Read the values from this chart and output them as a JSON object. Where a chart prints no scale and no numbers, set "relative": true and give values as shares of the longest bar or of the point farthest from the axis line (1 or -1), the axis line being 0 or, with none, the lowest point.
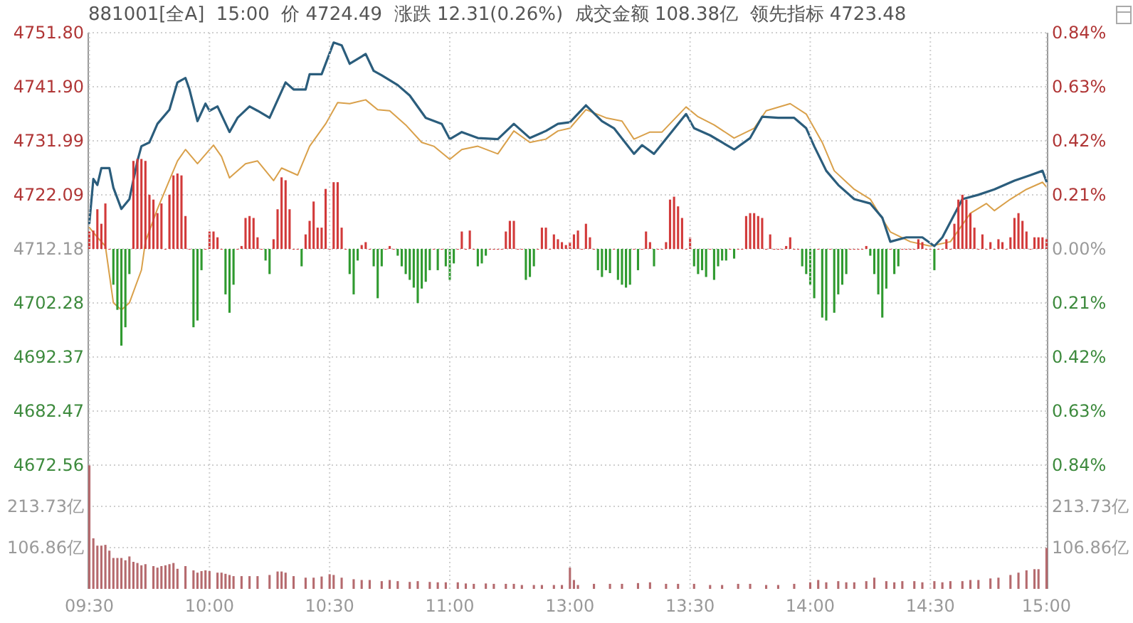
{
  "chart_data": [
    {
      "type": "line",
      "title": "881001[全A]  15:00  价 4724.49  涨跌 12.31(0.26%)  成交金额 108.38亿  领先指标 4723.48",
      "grid": "y",
      "categories": [
        null,
        null,
        null,
        null,
        null,
        null,
        null,
        null,
        null,
        null,
        null,
        null,
        null,
        null,
        null,
        null,
        null,
        null,
        null,
        null,
        null,
        null,
        null,
        null,
        null,
        null,
        null,
        null,
        null,
        null,
        null,
        null,
        null,
        null,
        null,
        null,
        null,
        null,
        null,
        null,
        null,
        null,
        null,
        null,
        null,
        null,
        null,
        null,
        null,
        null,
        null,
        null,
        null,
        null,
        null,
        null,
        null,
        null,
        null,
        null,
        null,
        null,
        null,
        null,
        null,
        null,
        null,
        null,
        null,
        null,
        null,
        null,
        null,
        null,
        null,
        null,
        null,
        null,
        null,
        null,
        null,
        null,
        null,
        null,
        null,
        null,
        null,
        null,
        null,
        null,
        null,
        null,
        null,
        null,
        null,
        null,
        null,
        null,
        null,
        null,
        null,
        null,
        null,
        null,
        null,
        null,
        null,
        null,
        null,
        null,
        null,
        null,
        null,
        null,
        null,
        null,
        null,
        null,
        null,
        null,
        null,
        null,
        null,
        null,
        null,
        null,
        null,
        null,
        null,
        null,
        null,
        null,
        null,
        null,
        null,
        null,
        null,
        null,
        null,
        null,
        null,
        null,
        null,
        null,
        null,
        null,
        null,
        null,
        null,
        null,
        null,
        null,
        null,
        null,
        null,
        null,
        null,
        null,
        null,
        null,
        null,
        null,
        null,
        null,
        null,
        null,
        null,
        null,
        null,
        null,
        null,
        null,
        null,
        null,
        null,
        null,
        null,
        null,
        null,
        null,
        null,
        null,
        null,
        null,
        null,
        null,
        null,
        null,
        null,
        null,
        null,
        null,
        null,
        null,
        null,
        null,
        null,
        null,
        null,
        null,
        null,
        null,
        null,
        null,
        null,
        null,
        null,
        null,
        null,
        null,
        null,
        null,
        null,
        null,
        null,
        null,
        null,
        null,
        null,
        null,
        null,
        null,
        null,
        null,
        null,
        null,
        null,
        null,
        null,
        null,
        null,
        null,
        null,
        null,
        null,
        null,
        null,
        null,
        null,
        null
      ],
      "ylim": [
        4672.56,
        4751.8
      ],
      "yticks": [
        {
          "value": 4672.56,
          "label": "4672.56"
        },
        {
          "value": 4682.47,
          "label": "4682.47"
        },
        {
          "value": 4692.37,
          "label": "4692.37"
        },
        {
          "value": 4702.28,
          "label": "4702.28"
        },
        {
          "value": 4712.18,
          "label": "4712.18"
        },
        {
          "value": 4722.09,
          "label": "4722.09"
        },
        {
          "value": 4731.99,
          "label": "4731.99"
        },
        {
          "value": 4741.9,
          "label": "4741.90"
        },
        {
          "value": 4751.8,
          "label": "4751.80"
        }
      ],
      "y2lim": [
        -0.84,
        0.84
      ],
      "y2ticks": [
        {
          "value": -0.84,
          "label": "0.84%"
        },
        {
          "value": -0.63,
          "label": "0.63%"
        },
        {
          "value": -0.42,
          "label": "0.42%"
        },
        {
          "value": -0.21,
          "label": "0.21%"
        },
        {
          "value": 0,
          "label": "0.00%"
        },
        {
          "value": 0.21,
          "label": "0.21%"
        },
        {
          "value": 0.42,
          "label": "0.42%"
        },
        {
          "value": 0.63,
          "label": "0.63%"
        },
        {
          "value": 0.84,
          "label": "0.84%"
        }
      ],
      "series": [
        {
          "color": "#d9a04a",
          "values": [
            4716.1,
            null,
            4714.3,
            null,
            4712.7,
            null,
            4702.3,
            null,
            4701.0,
            null,
            4702.3,
            null,
            null,
            4708.3,
            4713.5,
            null,
            null,
            4719.5,
            null,
            null,
            null,
            null,
            4728.3,
            null,
            4730.4,
            null,
            null,
            4727.8,
            null,
            null,
            null,
            4731.2,
            null,
            4729.1,
            null,
            4725.2,
            null,
            null,
            null,
            4727.8,
            null,
            null,
            4728.3,
            null,
            null,
            null,
            4724.7,
            null,
            4727.0,
            null,
            null,
            null,
            4725.7,
            null,
            null,
            4731.0,
            null,
            null,
            null,
            4735.1,
            null,
            null,
            4739.0,
            null,
            null,
            4738.8,
            null,
            null,
            null,
            4739.5,
            null,
            null,
            4737.7,
            null,
            null,
            4737.5,
            null,
            null,
            null,
            4734.9,
            null,
            null,
            null,
            4731.7,
            null,
            null,
            4731.0,
            null,
            null,
            null,
            4728.6,
            null,
            null,
            4730.4,
            null,
            null,
            null,
            4731.0,
            null,
            null,
            null,
            null,
            4729.6,
            null,
            null,
            null,
            4733.8,
            null,
            null,
            null,
            4731.7,
            null,
            null,
            null,
            4732.3,
            null,
            null,
            4733.8,
            null,
            null,
            4734.3,
            null,
            null,
            null,
            4737.7,
            null,
            null,
            null,
            null,
            4736.2,
            null,
            null,
            null,
            4735.6,
            null,
            null,
            4732.3,
            null,
            null,
            null,
            4733.6,
            null,
            null,
            4733.6,
            null,
            null,
            null,
            null,
            null,
            4738.2,
            null,
            null,
            4736.4,
            null,
            null,
            null,
            4734.9,
            null,
            null,
            null,
            null,
            4732.5,
            null,
            null,
            null,
            null,
            4734.3,
            null,
            null,
            4737.5,
            null,
            null,
            null,
            null,
            null,
            4738.8,
            null,
            null,
            null,
            4736.9,
            null,
            null,
            null,
            4731.7,
            null,
            null,
            4726.5,
            null,
            null,
            null,
            null,
            4723.1,
            null,
            null,
            null,
            4721.3,
            null,
            null,
            null,
            null,
            4715.3,
            null,
            null,
            null,
            null,
            4713.5,
            null,
            null,
            null,
            null,
            4712.7,
            null,
            null,
            null,
            null,
            4713.5,
            null,
            null,
            null,
            null,
            4718.7,
            null,
            null,
            null,
            4720.5,
            null,
            4719.2,
            null,
            null,
            null,
            4721.3,
            null,
            null,
            null,
            4723.1,
            null,
            null,
            null,
            4724.4,
            4723.5
          ]
        },
        {
          "color": "#2b5d7c",
          "values": [
            4716.9,
            4725.0,
            4723.9,
            4727.0,
            null,
            4727.0,
            4723.4,
            null,
            4719.5,
            null,
            4721.3,
            null,
            4728.3,
            4731.0,
            null,
            4731.7,
            null,
            4735.1,
            null,
            null,
            4737.7,
            null,
            4742.7,
            null,
            4743.5,
            4741.4,
            null,
            4735.6,
            null,
            4738.8,
            4737.5,
            null,
            4738.3,
            null,
            null,
            4733.6,
            null,
            4736.2,
            null,
            null,
            4738.3,
            null,
            4737.5,
            null,
            null,
            4736.2,
            null,
            null,
            null,
            4742.7,
            null,
            4741.4,
            null,
            null,
            4741.4,
            4744.2,
            null,
            null,
            4744.2,
            null,
            null,
            4750.0,
            null,
            4749.5,
            null,
            4746.1,
            null,
            null,
            null,
            4747.9,
            null,
            4744.8,
            null,
            4744.0,
            null,
            null,
            null,
            4742.2,
            null,
            null,
            4740.3,
            null,
            null,
            null,
            4736.2,
            null,
            null,
            null,
            4735.1,
            null,
            4732.3,
            null,
            null,
            4733.6,
            null,
            null,
            null,
            4732.5,
            null,
            null,
            null,
            null,
            4732.3,
            null,
            null,
            null,
            4735.1,
            null,
            null,
            null,
            4732.5,
            null,
            null,
            null,
            4733.8,
            null,
            null,
            4735.1,
            null,
            null,
            4735.4,
            null,
            null,
            null,
            4738.5,
            null,
            null,
            null,
            4735.6,
            null,
            null,
            4734.3,
            null,
            null,
            null,
            null,
            4729.6,
            null,
            4731.2,
            null,
            null,
            4729.6,
            null,
            null,
            null,
            null,
            null,
            null,
            null,
            4736.9,
            null,
            4734.3,
            null,
            null,
            null,
            4733.0,
            null,
            null,
            null,
            null,
            null,
            4730.4,
            null,
            null,
            null,
            4732.5,
            null,
            null,
            4736.4,
            null,
            null,
            null,
            4736.2,
            null,
            null,
            null,
            4736.2,
            null,
            null,
            4734.3,
            null,
            4731.0,
            null,
            null,
            4726.5,
            null,
            null,
            4723.9,
            null,
            null,
            null,
            4721.3,
            null,
            null,
            null,
            4720.5,
            null,
            null,
            4717.9,
            null,
            4713.5,
            null,
            null,
            null,
            4714.3,
            null,
            null,
            null,
            4714.3,
            null,
            null,
            4712.7,
            null,
            4714.3,
            null,
            null,
            null,
            null,
            4721.3,
            null,
            null,
            null,
            4722.1,
            null,
            null,
            null,
            4723.1,
            null,
            null,
            null,
            null,
            4724.7,
            null,
            null,
            null,
            4725.7,
            null,
            null,
            4726.5,
            4724.5
          ]
        }
      ]
    },
    {
      "type": "bar",
      "relative": true,
      "categories": [
        null,
        null,
        null,
        null,
        null,
        null,
        null,
        null,
        null,
        null,
        null,
        null,
        null,
        null,
        null,
        null,
        null,
        null,
        null,
        null,
        null,
        null,
        null,
        null,
        null,
        null,
        null,
        null,
        null,
        null,
        null,
        null,
        null,
        null,
        null,
        null,
        null,
        null,
        null,
        null,
        null,
        null,
        null,
        null,
        null,
        null,
        null,
        null,
        null,
        null,
        null,
        null,
        null,
        null,
        null,
        null,
        null,
        null,
        null,
        null,
        null,
        null,
        null,
        null,
        null,
        null,
        null,
        null,
        null,
        null,
        null,
        null,
        null,
        null,
        null,
        null,
        null,
        null,
        null,
        null,
        null,
        null,
        null,
        null,
        null,
        null,
        null,
        null,
        null,
        null,
        null,
        null,
        null,
        null,
        null,
        null,
        null,
        null,
        null,
        null,
        null,
        null,
        null,
        null,
        null,
        null,
        null,
        null,
        null,
        null,
        null,
        null,
        null,
        null,
        null,
        null,
        null,
        null,
        null,
        null,
        null,
        null,
        null,
        null,
        null,
        null,
        null,
        null,
        null,
        null,
        null,
        null,
        null,
        null,
        null,
        null,
        null,
        null,
        null,
        null,
        null,
        null,
        null,
        null,
        null,
        null,
        null,
        null,
        null,
        null,
        null,
        null,
        null,
        null,
        null,
        null,
        null,
        null,
        null,
        null,
        null,
        null,
        null,
        null,
        null,
        null,
        null,
        null,
        null,
        null,
        null,
        null,
        null,
        null,
        null,
        null,
        null,
        null,
        null,
        null,
        null,
        null,
        null,
        null,
        null,
        null,
        null,
        null,
        null,
        null,
        null,
        null,
        null,
        null,
        null,
        null,
        null,
        null,
        null,
        null,
        null,
        null,
        null,
        null,
        null,
        null,
        null,
        null,
        null,
        null,
        null,
        null,
        null,
        null,
        null,
        null,
        null,
        null,
        null,
        null,
        null,
        null,
        null,
        null,
        null,
        null,
        null,
        null,
        null,
        null,
        null,
        null,
        null,
        null,
        null,
        null,
        null,
        null,
        null,
        null
      ],
      "series": [
        {
          "values": [
            0.18,
            0.19,
            0.41,
            0.26,
            0.47,
            0,
            -0.37,
            -0.63,
            -1,
            -0.81,
            -0.26,
            0.91,
            0.93,
            0.93,
            0.91,
            0.56,
            0.51,
            0.37,
            0.47,
            0,
            0.56,
            0.76,
            0.78,
            0.76,
            0.34,
            0,
            -0.81,
            -0.74,
            -0.22,
            0,
            0.18,
            0.18,
            0.12,
            0,
            -0.47,
            -0.66,
            -0.37,
            0,
            0.03,
            0.32,
            0.34,
            0.32,
            0.12,
            0,
            -0.12,
            -0.26,
            0.1,
            0.41,
            0.74,
            0.71,
            0.41,
            0,
            0,
            -0.18,
            0.15,
            0.29,
            0.49,
            0.22,
            0.22,
            0.62,
            0,
            0.69,
            0.69,
            0.22,
            0,
            -0.26,
            -0.47,
            -0.12,
            0.04,
            0.07,
            0,
            -0.18,
            -0.51,
            -0.18,
            0,
            0.03,
            0,
            -0.07,
            -0.18,
            -0.26,
            -0.32,
            -0.4,
            -0.56,
            -0.41,
            -0.34,
            -0.22,
            0,
            -0.22,
            0,
            -0.18,
            -0.32,
            -0.15,
            0,
            0.18,
            0,
            0.19,
            0,
            -0.18,
            -0.15,
            -0.07,
            0,
            0,
            0,
            0,
            0.18,
            0.29,
            0.29,
            0,
            0,
            -0.32,
            -0.29,
            -0.18,
            0,
            0.22,
            0.22,
            0,
            0.15,
            0.1,
            0.07,
            0.04,
            0.07,
            0.15,
            0.19,
            0,
            0.26,
            0.12,
            0,
            -0.22,
            -0.29,
            -0.22,
            -0.25,
            0,
            -0.32,
            -0.37,
            -0.4,
            -0.37,
            0,
            -0.22,
            0,
            0.18,
            0.07,
            -0.18,
            0,
            0,
            0.07,
            0.51,
            0.54,
            0.44,
            0.32,
            0,
            0.12,
            -0.18,
            -0.26,
            -0.22,
            -0.29,
            0,
            -0.32,
            -0.18,
            -0.12,
            -0.12,
            0,
            -0.1,
            0,
            0,
            0.34,
            0.37,
            0.37,
            0.34,
            0.32,
            0,
            0.15,
            0,
            0,
            0,
            0.03,
            0.12,
            0,
            0,
            -0.18,
            -0.26,
            -0.37,
            -0.51,
            0,
            -0.71,
            -0.74,
            0,
            -0.66,
            -0.47,
            -0.37,
            -0.26,
            0,
            0,
            0,
            0,
            0.03,
            -0.07,
            -0.26,
            -0.47,
            -0.71,
            -0.41,
            0,
            -0.26,
            -0.18,
            0,
            0,
            0,
            0,
            0.1,
            0.07,
            0,
            0,
            -0.22,
            0,
            0,
            0.1,
            0,
            0.26,
            0.51,
            0.56,
            0.51,
            0.37,
            0.22,
            0,
            0.15,
            0,
            0.07,
            0,
            0.1,
            0.07,
            0,
            0.12,
            0.32,
            0.37,
            0.29,
            0.18,
            0,
            0.12,
            0.12,
            0.12,
            0.1
          ],
          "colors": [
            "#d23a3a",
            "#d23a3a",
            "#d23a3a",
            "#d23a3a",
            "#d23a3a",
            "#d23a3a",
            "#2f9a2f",
            "#2f9a2f",
            "#2f9a2f",
            "#2f9a2f",
            "#2f9a2f",
            "#d23a3a",
            "#d23a3a",
            "#d23a3a",
            "#d23a3a",
            "#d23a3a",
            "#d23a3a",
            "#d23a3a",
            "#d23a3a",
            "#d23a3a",
            "#d23a3a",
            "#d23a3a",
            "#d23a3a",
            "#d23a3a",
            "#d23a3a",
            "#d23a3a",
            "#2f9a2f",
            "#2f9a2f",
            "#2f9a2f",
            "#d23a3a",
            "#d23a3a",
            "#d23a3a",
            "#d23a3a",
            "#d23a3a",
            "#2f9a2f",
            "#2f9a2f",
            "#2f9a2f",
            "#d23a3a",
            "#d23a3a",
            "#d23a3a",
            "#d23a3a",
            "#d23a3a",
            "#d23a3a",
            "#d23a3a",
            "#2f9a2f",
            "#2f9a2f",
            "#d23a3a",
            "#d23a3a",
            "#d23a3a",
            "#d23a3a",
            "#d23a3a",
            "#d23a3a",
            "#d23a3a",
            "#2f9a2f",
            "#d23a3a",
            "#d23a3a",
            "#d23a3a",
            "#d23a3a",
            "#d23a3a",
            "#d23a3a",
            "#d23a3a",
            "#d23a3a",
            "#d23a3a",
            "#d23a3a",
            "#d23a3a",
            "#2f9a2f",
            "#2f9a2f",
            "#2f9a2f",
            "#d23a3a",
            "#d23a3a",
            "#d23a3a",
            "#2f9a2f",
            "#2f9a2f",
            "#2f9a2f",
            "#d23a3a",
            "#d23a3a",
            "#d23a3a",
            "#2f9a2f",
            "#2f9a2f",
            "#2f9a2f",
            "#2f9a2f",
            "#2f9a2f",
            "#2f9a2f",
            "#2f9a2f",
            "#2f9a2f",
            "#2f9a2f",
            "#d23a3a",
            "#2f9a2f",
            "#d23a3a",
            "#2f9a2f",
            "#2f9a2f",
            "#2f9a2f",
            "#d23a3a",
            "#d23a3a",
            "#d23a3a",
            "#d23a3a",
            "#d23a3a",
            "#2f9a2f",
            "#2f9a2f",
            "#2f9a2f",
            "#d23a3a",
            "#d23a3a",
            "#d23a3a",
            "#d23a3a",
            "#d23a3a",
            "#d23a3a",
            "#d23a3a",
            "#d23a3a",
            "#d23a3a",
            "#2f9a2f",
            "#2f9a2f",
            "#2f9a2f",
            "#d23a3a",
            "#d23a3a",
            "#d23a3a",
            "#d23a3a",
            "#d23a3a",
            "#d23a3a",
            "#d23a3a",
            "#d23a3a",
            "#d23a3a",
            "#d23a3a",
            "#d23a3a",
            "#d23a3a",
            "#d23a3a",
            "#d23a3a",
            "#d23a3a",
            "#2f9a2f",
            "#2f9a2f",
            "#2f9a2f",
            "#2f9a2f",
            "#d23a3a",
            "#2f9a2f",
            "#2f9a2f",
            "#2f9a2f",
            "#2f9a2f",
            "#d23a3a",
            "#2f9a2f",
            "#d23a3a",
            "#d23a3a",
            "#d23a3a",
            "#2f9a2f",
            "#d23a3a",
            "#d23a3a",
            "#d23a3a",
            "#d23a3a",
            "#d23a3a",
            "#d23a3a",
            "#d23a3a",
            "#d23a3a",
            "#d23a3a",
            "#2f9a2f",
            "#2f9a2f",
            "#2f9a2f",
            "#2f9a2f",
            "#d23a3a",
            "#2f9a2f",
            "#2f9a2f",
            "#2f9a2f",
            "#2f9a2f",
            "#d23a3a",
            "#2f9a2f",
            "#d23a3a",
            "#d23a3a",
            "#d23a3a",
            "#d23a3a",
            "#d23a3a",
            "#d23a3a",
            "#d23a3a",
            "#d23a3a",
            "#d23a3a",
            "#d23a3a",
            "#d23a3a",
            "#d23a3a",
            "#d23a3a",
            "#d23a3a",
            "#d23a3a",
            "#d23a3a",
            "#2f9a2f",
            "#2f9a2f",
            "#2f9a2f",
            "#2f9a2f",
            "#d23a3a",
            "#2f9a2f",
            "#2f9a2f",
            "#d23a3a",
            "#2f9a2f",
            "#2f9a2f",
            "#2f9a2f",
            "#2f9a2f",
            "#d23a3a",
            "#d23a3a",
            "#d23a3a",
            "#d23a3a",
            "#d23a3a",
            "#2f9a2f",
            "#2f9a2f",
            "#2f9a2f",
            "#2f9a2f",
            "#2f9a2f",
            "#d23a3a",
            "#2f9a2f",
            "#2f9a2f",
            "#d23a3a",
            "#d23a3a",
            "#d23a3a",
            "#d23a3a",
            "#d23a3a",
            "#d23a3a",
            "#d23a3a",
            "#d23a3a",
            "#2f9a2f",
            "#d23a3a",
            "#d23a3a",
            "#d23a3a",
            "#d23a3a",
            "#d23a3a",
            "#d23a3a",
            "#d23a3a",
            "#d23a3a",
            "#d23a3a",
            "#d23a3a",
            "#d23a3a",
            "#d23a3a",
            "#d23a3a",
            "#d23a3a",
            "#d23a3a",
            "#d23a3a",
            "#d23a3a",
            "#d23a3a",
            "#d23a3a",
            "#d23a3a",
            "#d23a3a",
            "#d23a3a",
            "#d23a3a",
            "#d23a3a",
            "#d23a3a",
            "#d23a3a",
            "#d23a3a",
            "#d23a3a"
          ]
        }
      ]
    },
    {
      "type": "bar",
      "grid": true,
      "categories": [
        "09:30",
        null,
        null,
        null,
        null,
        null,
        null,
        null,
        null,
        null,
        null,
        null,
        null,
        null,
        null,
        null,
        null,
        null,
        null,
        null,
        null,
        null,
        null,
        null,
        null,
        null,
        null,
        null,
        null,
        null,
        "10:00",
        null,
        null,
        null,
        null,
        null,
        null,
        null,
        null,
        null,
        null,
        null,
        null,
        null,
        null,
        null,
        null,
        null,
        null,
        null,
        null,
        null,
        null,
        null,
        null,
        null,
        null,
        null,
        null,
        null,
        "10:30",
        null,
        null,
        null,
        null,
        null,
        null,
        null,
        null,
        null,
        null,
        null,
        null,
        null,
        null,
        null,
        null,
        null,
        null,
        null,
        null,
        null,
        null,
        null,
        null,
        null,
        null,
        null,
        null,
        null,
        "11:00",
        null,
        null,
        null,
        null,
        null,
        null,
        null,
        null,
        null,
        null,
        null,
        null,
        null,
        null,
        null,
        null,
        null,
        null,
        null,
        null,
        null,
        null,
        null,
        null,
        null,
        null,
        null,
        null,
        null,
        "13:00",
        null,
        null,
        null,
        null,
        null,
        null,
        null,
        null,
        null,
        null,
        null,
        null,
        null,
        null,
        null,
        null,
        null,
        null,
        null,
        null,
        null,
        null,
        null,
        null,
        null,
        null,
        null,
        null,
        null,
        "13:30",
        null,
        null,
        null,
        null,
        null,
        null,
        null,
        null,
        null,
        null,
        null,
        null,
        null,
        null,
        null,
        null,
        null,
        null,
        null,
        null,
        null,
        null,
        null,
        null,
        null,
        null,
        null,
        null,
        null,
        "14:00",
        null,
        null,
        null,
        null,
        null,
        null,
        null,
        null,
        null,
        null,
        null,
        null,
        null,
        null,
        null,
        null,
        null,
        null,
        null,
        null,
        null,
        null,
        null,
        null,
        null,
        null,
        null,
        null,
        null,
        "14:30",
        null,
        null,
        null,
        null,
        null,
        null,
        null,
        null,
        null,
        null,
        null,
        null,
        null,
        null,
        null,
        null,
        null,
        null,
        null,
        null,
        null,
        null,
        null,
        null,
        null,
        null,
        null,
        null,
        "15:00"
      ],
      "ylim": [
        0,
        320.6
      ],
      "yticks": [
        {
          "value": 106.86,
          "label": "106.86亿"
        },
        {
          "value": 213.73,
          "label": "213.73亿"
        }
      ],
      "y2lim": [
        0,
        320.6
      ],
      "y2ticks": [
        {
          "value": 106.86,
          "label": "106.86亿"
        },
        {
          "value": 213.73,
          "label": "213.73亿"
        }
      ],
      "series": [
        {
          "color": "#b56a6e",
          "values": [
            320,
            131,
            112,
            112,
            114,
            99,
            80,
            80,
            80,
            74,
            84,
            70,
            67,
            61,
            64,
            null,
            59,
            55,
            59,
            61,
            64,
            67,
            52,
            null,
            59,
            null,
            48,
            42,
            46,
            48,
            46,
            null,
            42,
            42,
            39,
            36,
            33,
            null,
            33,
            null,
            33,
            null,
            33,
            null,
            null,
            36,
            null,
            45,
            45,
            42,
            null,
            33,
            null,
            null,
            29,
            null,
            29,
            null,
            32,
            null,
            38,
            36,
            null,
            29,
            null,
            null,
            25,
            null,
            23,
            null,
            23,
            null,
            null,
            20,
            null,
            23,
            null,
            20,
            null,
            null,
            18,
            null,
            20,
            null,
            null,
            18,
            null,
            17,
            null,
            17,
            null,
            null,
            17,
            null,
            14,
            null,
            13,
            null,
            null,
            14,
            null,
            13,
            null,
            null,
            13,
            null,
            13,
            null,
            10,
            null,
            null,
            10,
            null,
            10,
            null,
            null,
            10,
            null,
            10,
            null,
            55,
            23,
            10,
            null,
            null,
            null,
            13,
            null,
            null,
            null,
            13,
            null,
            null,
            13,
            null,
            null,
            null,
            15,
            null,
            null,
            17,
            null,
            null,
            null,
            13,
            null,
            null,
            13,
            null,
            null,
            null,
            13,
            null,
            null,
            null,
            10,
            null,
            null,
            10,
            null,
            null,
            null,
            13,
            null,
            null,
            13,
            null,
            null,
            null,
            10,
            null,
            null,
            10,
            null,
            null,
            null,
            13,
            null,
            null,
            null,
            17,
            null,
            23,
            null,
            17,
            null,
            null,
            20,
            null,
            17,
            null,
            17,
            null,
            null,
            20,
            null,
            29,
            null,
            null,
            20,
            null,
            17,
            null,
            20,
            null,
            null,
            20,
            null,
            17,
            null,
            null,
            20,
            null,
            17,
            null,
            20,
            null,
            null,
            20,
            null,
            23,
            null,
            23,
            null,
            null,
            27,
            null,
            29,
            null,
            null,
            36,
            null,
            42,
            null,
            48,
            null,
            51,
            51,
            null,
            106
          ]
        }
      ]
    }
  ]
}
